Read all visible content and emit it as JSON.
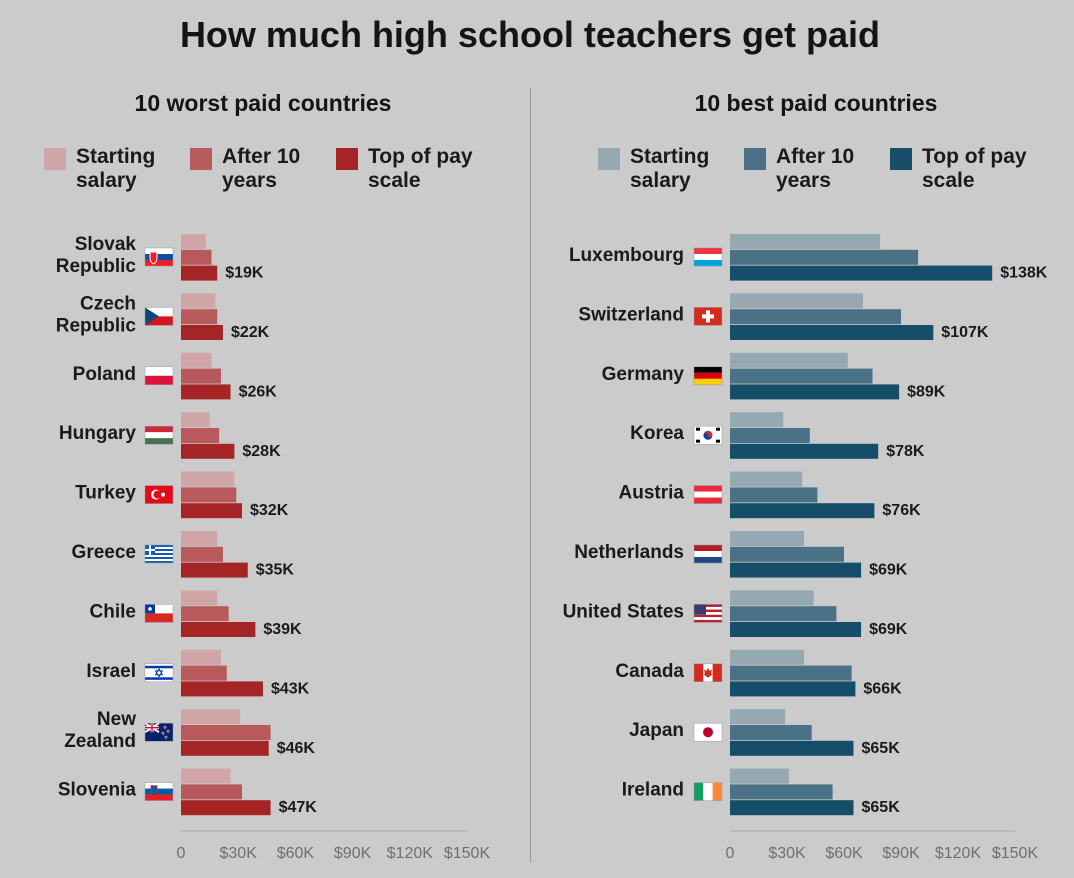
{
  "title": "How much high school teachers get paid",
  "legend_labels": {
    "starting": "Starting salary",
    "after10": "After 10 years",
    "top": "Top of pay scale"
  },
  "chart_data": [
    {
      "type": "bar",
      "orientation": "horizontal",
      "title": "10 worst paid countries",
      "categories": [
        "Slovak Republic",
        "Czech Republic",
        "Poland",
        "Hungary",
        "Turkey",
        "Greece",
        "Chile",
        "Israel",
        "New Zealand",
        "Slovenia"
      ],
      "series": [
        {
          "name": "Starting salary",
          "color": "#d0a5a7",
          "values": [
            13,
            18,
            16,
            15,
            28,
            19,
            19,
            21,
            31,
            26
          ]
        },
        {
          "name": "After 10 years",
          "color": "#b85a5c",
          "values": [
            16,
            19,
            21,
            20,
            29,
            22,
            25,
            24,
            47,
            32
          ]
        },
        {
          "name": "Top of pay scale",
          "color": "#a52527",
          "values": [
            19,
            22,
            26,
            28,
            32,
            35,
            39,
            43,
            46,
            47
          ]
        }
      ],
      "data_labels": [
        "$19K",
        "$22K",
        "$26K",
        "$28K",
        "$32K",
        "$35K",
        "$39K",
        "$43K",
        "$46K",
        "$47K"
      ],
      "xlim": [
        0,
        150
      ],
      "xticks": [
        0,
        30,
        60,
        90,
        120,
        150
      ],
      "xtick_labels": [
        "0",
        "$30K",
        "$60K",
        "$90K",
        "$120K",
        "$150K"
      ],
      "flags": [
        "flag-sk",
        "flag-cz",
        "flag-pl",
        "flag-hu",
        "flag-tr",
        "flag-gr",
        "flag-cl",
        "flag-il",
        "flag-nz",
        "flag-si"
      ]
    },
    {
      "type": "bar",
      "orientation": "horizontal",
      "title": "10 best paid countries",
      "categories": [
        "Luxembourg",
        "Switzerland",
        "Germany",
        "Korea",
        "Austria",
        "Netherlands",
        "United States",
        "Canada",
        "Japan",
        "Ireland"
      ],
      "series": [
        {
          "name": "Starting salary",
          "color": "#96a8b2",
          "values": [
            79,
            70,
            62,
            28,
            38,
            39,
            44,
            39,
            29,
            31
          ]
        },
        {
          "name": "After 10 years",
          "color": "#4a7185",
          "values": [
            99,
            90,
            75,
            42,
            46,
            60,
            56,
            64,
            43,
            54
          ]
        },
        {
          "name": "Top of pay scale",
          "color": "#164d69",
          "values": [
            138,
            107,
            89,
            78,
            76,
            69,
            69,
            66,
            65,
            65
          ]
        }
      ],
      "data_labels": [
        "$138K",
        "$107K",
        "$89K",
        "$78K",
        "$76K",
        "$69K",
        "$69K",
        "$66K",
        "$65K",
        "$65K"
      ],
      "xlim": [
        0,
        150
      ],
      "xticks": [
        0,
        30,
        60,
        90,
        120,
        150
      ],
      "xtick_labels": [
        "0",
        "$30K",
        "$60K",
        "$90K",
        "$120K",
        "$150K"
      ],
      "flags": [
        "flag-lu",
        "flag-ch",
        "flag-de",
        "flag-kr",
        "flag-at",
        "flag-nl",
        "flag-us",
        "flag-ca",
        "flag-jp",
        "flag-ie"
      ]
    }
  ]
}
